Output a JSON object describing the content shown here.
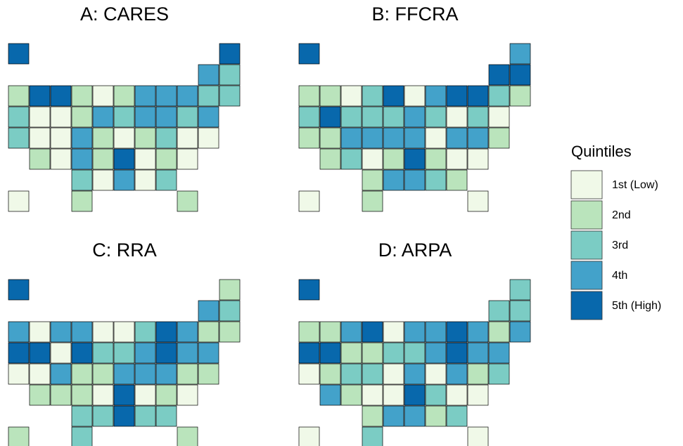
{
  "panels": [
    {
      "title": "A: CARES",
      "quintiles": [
        5,
        5,
        4,
        3,
        2,
        5,
        5,
        2,
        1,
        2,
        4,
        4,
        4,
        3,
        3,
        3,
        1,
        1,
        2,
        4,
        3,
        4,
        4,
        3,
        4,
        3,
        1,
        1,
        4,
        2,
        1,
        2,
        3,
        1,
        1,
        2,
        1,
        4,
        2,
        5,
        1,
        2,
        1,
        3,
        1,
        4,
        1,
        3,
        1,
        2,
        2
      ]
    },
    {
      "title": "B: FFCRA",
      "quintiles": [
        5,
        4,
        5,
        5,
        2,
        2,
        1,
        3,
        5,
        1,
        4,
        5,
        5,
        3,
        2,
        3,
        5,
        3,
        3,
        3,
        4,
        3,
        1,
        3,
        1,
        2,
        2,
        4,
        4,
        4,
        4,
        1,
        4,
        4,
        2,
        2,
        3,
        1,
        2,
        5,
        2,
        1,
        1,
        2,
        4,
        4,
        3,
        2,
        1,
        2,
        1
      ]
    },
    {
      "title": "C: RRA",
      "quintiles": [
        5,
        2,
        4,
        3,
        4,
        1,
        4,
        4,
        1,
        1,
        3,
        5,
        4,
        2,
        2,
        5,
        5,
        1,
        5,
        3,
        3,
        4,
        5,
        4,
        4,
        1,
        1,
        4,
        2,
        2,
        4,
        4,
        4,
        2,
        2,
        2,
        2,
        2,
        1,
        5,
        1,
        2,
        1,
        3,
        3,
        5,
        3,
        3,
        2,
        3,
        2
      ]
    },
    {
      "title": "D: ARPA",
      "quintiles": [
        5,
        3,
        3,
        3,
        2,
        2,
        4,
        5,
        1,
        4,
        4,
        5,
        4,
        2,
        4,
        5,
        5,
        2,
        2,
        3,
        3,
        4,
        5,
        4,
        4,
        1,
        2,
        3,
        3,
        1,
        4,
        1,
        4,
        2,
        3,
        4,
        2,
        1,
        1,
        5,
        3,
        1,
        1,
        2,
        4,
        4,
        2,
        3,
        1,
        3,
        1
      ]
    }
  ],
  "legend": {
    "title": "Quintiles",
    "labels": [
      "1st (Low)",
      "2nd",
      "3rd",
      "4th",
      "5th (High)"
    ],
    "colors": [
      "#f0f9e8",
      "#bae4bc",
      "#7bccc4",
      "#43a2ca",
      "#0868ac"
    ]
  }
}
